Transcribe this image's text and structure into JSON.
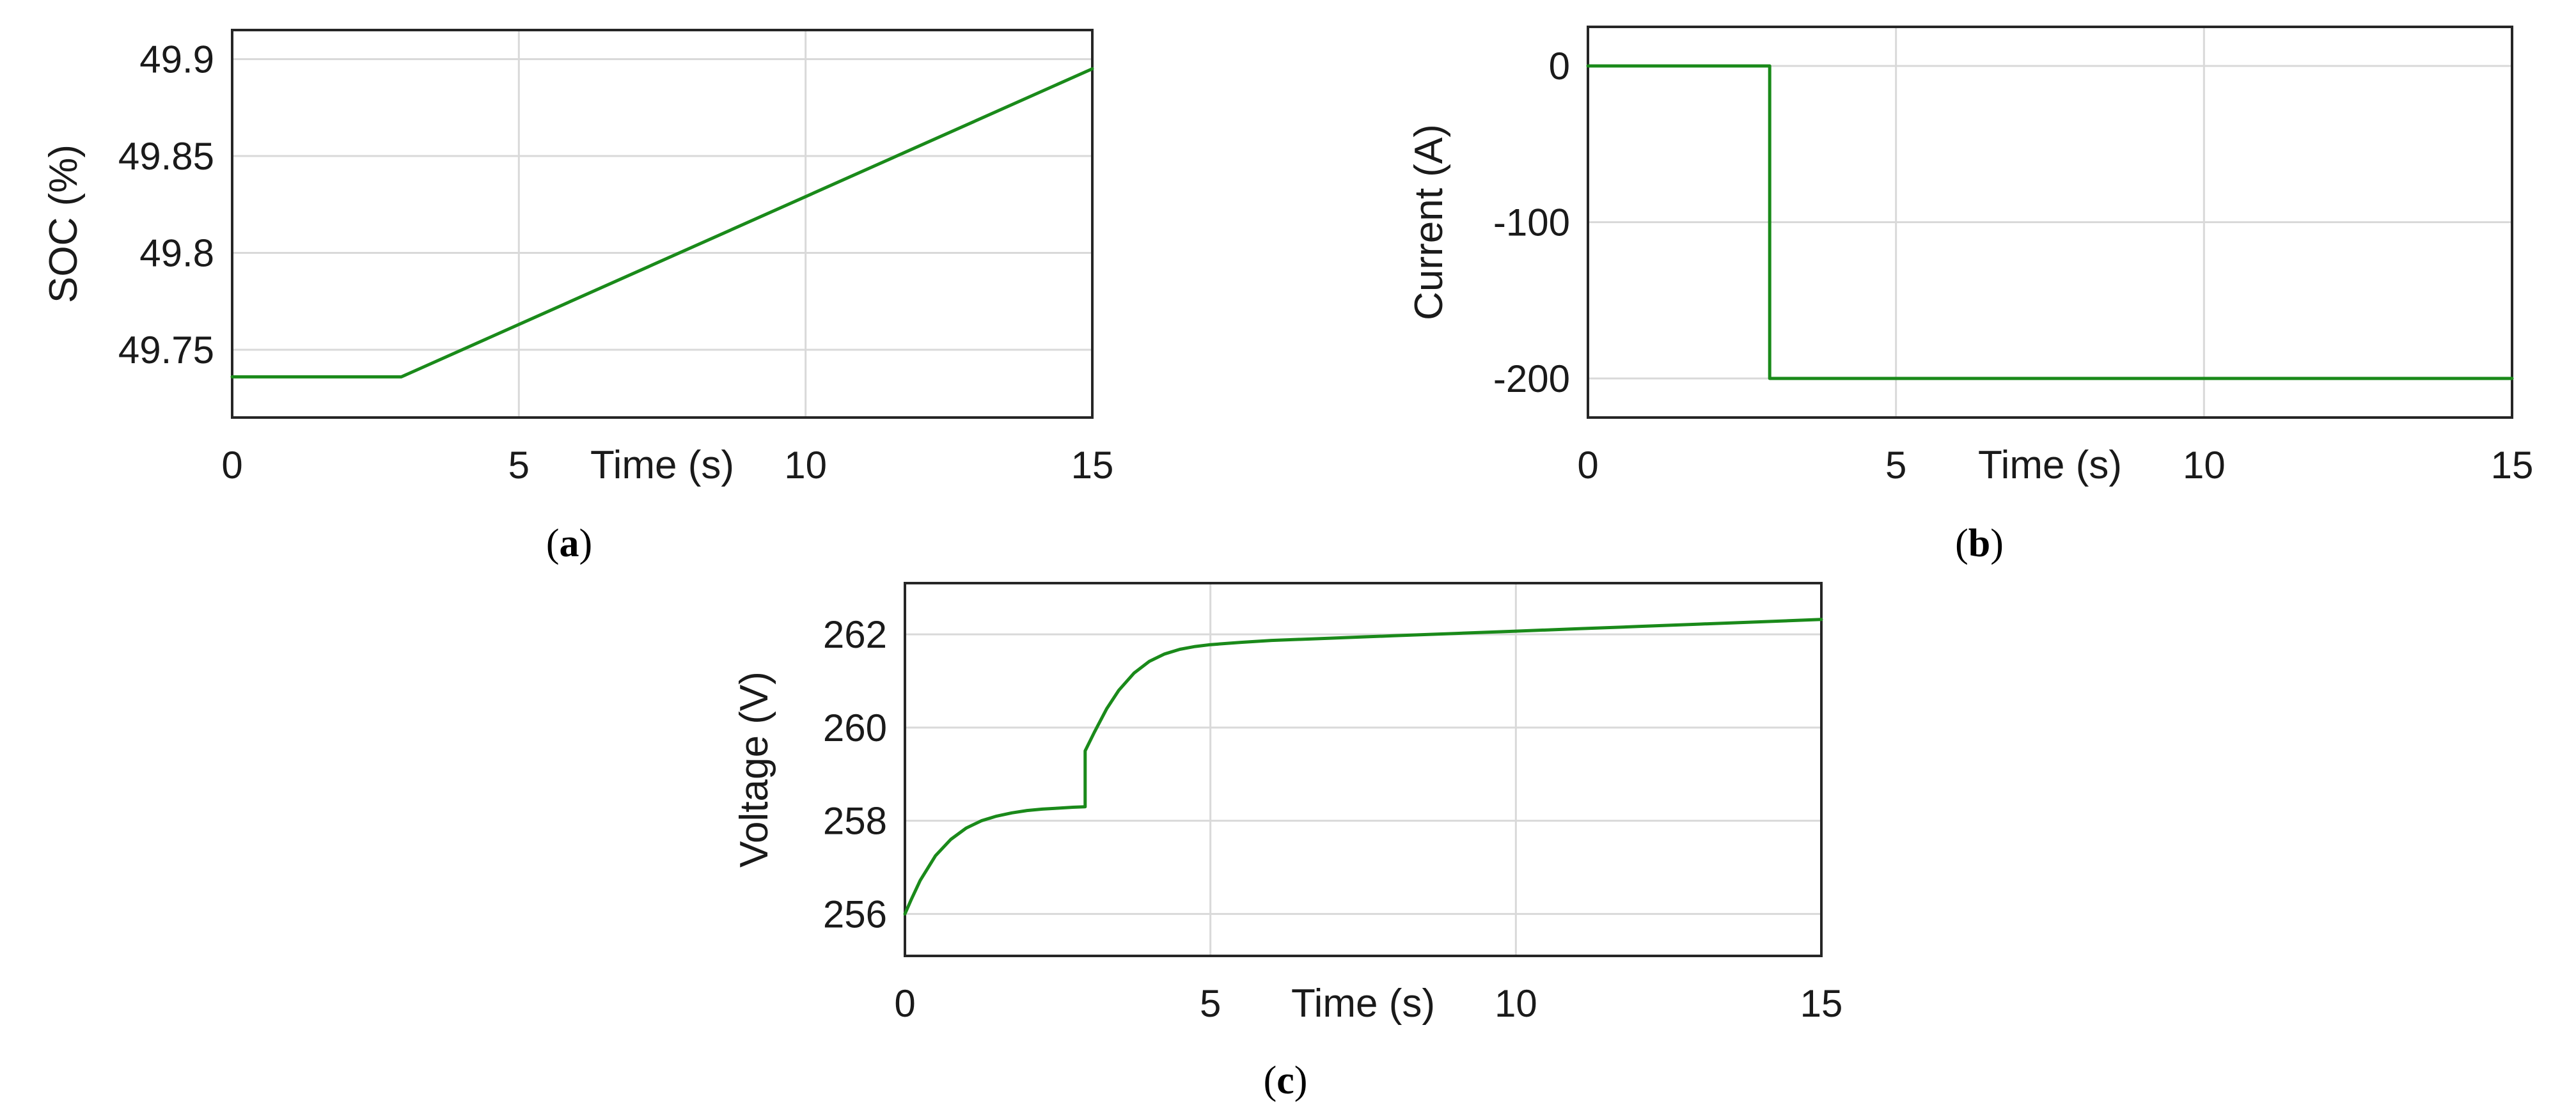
{
  "colors": {
    "series": "#1a8a1a",
    "frame": "#262626",
    "grid": "#d9d9d9"
  },
  "chart_data": [
    {
      "id": "a",
      "type": "line",
      "caption_letter": "a",
      "xlabel": "Time (s)",
      "ylabel": "SOC (%)",
      "xlim": [
        0,
        15
      ],
      "ylim": [
        49.715,
        49.915
      ],
      "xticks": [
        0,
        5,
        10,
        15
      ],
      "yticks": [
        49.75,
        49.8,
        49.85,
        49.9
      ],
      "xtick_labels": [
        "0",
        "5",
        "10",
        "15"
      ],
      "ytick_labels": [
        "49.75",
        "49.8",
        "49.85",
        "49.9"
      ],
      "grid": true,
      "series": [
        {
          "name": "SOC",
          "x": [
            0,
            2.95,
            15
          ],
          "y": [
            49.736,
            49.736,
            49.895
          ]
        }
      ]
    },
    {
      "id": "b",
      "type": "line",
      "caption_letter": "b",
      "xlabel": "Time (s)",
      "ylabel": "Current (A)",
      "xlim": [
        0,
        15
      ],
      "ylim": [
        -225,
        25
      ],
      "xticks": [
        0,
        5,
        10,
        15
      ],
      "yticks": [
        -200,
        -100,
        0
      ],
      "xtick_labels": [
        "0",
        "5",
        "10",
        "15"
      ],
      "ytick_labels": [
        "-200",
        "-100",
        "0"
      ],
      "grid": true,
      "series": [
        {
          "name": "Current",
          "x": [
            0,
            2.95,
            2.95,
            15
          ],
          "y": [
            0,
            0,
            -200,
            -200
          ]
        }
      ]
    },
    {
      "id": "c",
      "type": "line",
      "caption_letter": "c",
      "xlabel": "Time (s)",
      "ylabel": "Voltage (V)",
      "xlim": [
        0,
        15
      ],
      "ylim": [
        255.1,
        263.1
      ],
      "xticks": [
        0,
        5,
        10,
        15
      ],
      "yticks": [
        256,
        258,
        260,
        262
      ],
      "xtick_labels": [
        "0",
        "5",
        "10",
        "15"
      ],
      "ytick_labels": [
        "256",
        "258",
        "260",
        "262"
      ],
      "grid": true,
      "series": [
        {
          "name": "Voltage",
          "x": [
            0,
            0.1,
            0.25,
            0.5,
            0.75,
            1.0,
            1.25,
            1.5,
            1.75,
            2.0,
            2.25,
            2.5,
            2.75,
            2.95,
            2.95,
            3.1,
            3.3,
            3.5,
            3.75,
            4.0,
            4.25,
            4.5,
            4.75,
            5.0,
            5.5,
            6.0,
            7.0,
            8.0,
            9.0,
            10.0,
            11.0,
            12.0,
            13.0,
            14.0,
            15.0
          ],
          "y": [
            256.0,
            256.3,
            256.72,
            257.25,
            257.6,
            257.84,
            258.0,
            258.1,
            258.17,
            258.22,
            258.25,
            258.27,
            258.29,
            258.3,
            259.5,
            259.9,
            260.4,
            260.8,
            261.17,
            261.42,
            261.58,
            261.68,
            261.74,
            261.78,
            261.83,
            261.87,
            261.92,
            261.97,
            262.02,
            262.07,
            262.12,
            262.17,
            262.22,
            262.27,
            262.32
          ]
        }
      ]
    }
  ]
}
